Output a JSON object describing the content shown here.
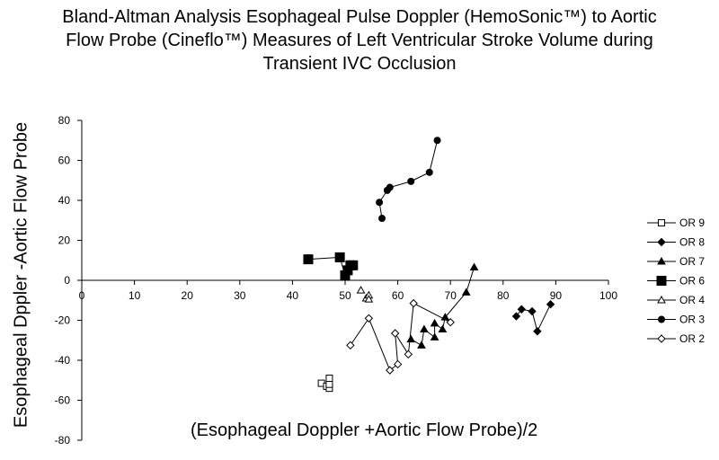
{
  "chart_data": {
    "type": "scatter",
    "title_lines": [
      "Bland-Altman Analysis Esophageal Pulse Doppler (HemoSonic™) to Aortic",
      "Flow Probe (Cineflo™) Measures of Left Ventricular Stroke Volume during",
      "Transient IVC Occlusion"
    ],
    "xlabel": "(Esophageal Doppler +Aortic Flow Probe)/2",
    "ylabel": "Esophageal Dppler -Aortic Flow Probe",
    "xlim": [
      0,
      100
    ],
    "ylim": [
      -80,
      80
    ],
    "x_ticks": [
      0,
      10,
      20,
      30,
      40,
      50,
      60,
      70,
      80,
      90,
      100
    ],
    "y_ticks": [
      80,
      60,
      40,
      20,
      0,
      -20,
      -40,
      -60,
      -80
    ],
    "grid": false,
    "legend_position": "right",
    "series": [
      {
        "name": "OR 9",
        "marker": "square-open",
        "lines": false,
        "points": [
          [
            45.5,
            -51.5
          ],
          [
            46.5,
            -53
          ],
          [
            47,
            -54
          ],
          [
            47,
            -52
          ],
          [
            47,
            -49
          ]
        ]
      },
      {
        "name": "OR 8",
        "marker": "diamond-filled",
        "lines": true,
        "points": [
          [
            82.5,
            -18
          ],
          [
            83.5,
            -14.5
          ],
          [
            85.5,
            -15.5
          ],
          [
            86.5,
            -25.5
          ],
          [
            89,
            -12
          ]
        ]
      },
      {
        "name": "OR 7",
        "marker": "triangle-filled",
        "lines": true,
        "points": [
          [
            62.5,
            -29.5
          ],
          [
            64.5,
            -32.5
          ],
          [
            65,
            -24.5
          ],
          [
            67,
            -28.5
          ],
          [
            67,
            -21.5
          ],
          [
            68.5,
            -24.5
          ],
          [
            69,
            -18.5
          ],
          [
            73,
            -6
          ],
          [
            74.5,
            6.5
          ]
        ]
      },
      {
        "name": "OR 6",
        "marker": "square-filled",
        "lines": true,
        "points": [
          [
            43,
            10.5
          ],
          [
            49,
            11.5
          ],
          [
            50,
            2.5
          ],
          [
            50.5,
            5
          ],
          [
            51,
            7.5
          ],
          [
            51.5,
            7.5
          ]
        ]
      },
      {
        "name": "OR 4",
        "marker": "triangle-open",
        "lines": false,
        "points": [
          [
            53,
            -5
          ],
          [
            54,
            -9
          ],
          [
            54.5,
            -7.5
          ],
          [
            54.5,
            -9.5
          ]
        ]
      },
      {
        "name": "OR 3",
        "marker": "circle-filled",
        "lines": true,
        "points": [
          [
            57,
            31
          ],
          [
            56.5,
            39
          ],
          [
            58,
            45
          ],
          [
            58.5,
            46.5
          ],
          [
            62.5,
            49.5
          ],
          [
            66,
            54
          ],
          [
            67.5,
            70
          ]
        ]
      },
      {
        "name": "OR 2",
        "marker": "diamond-open",
        "lines": true,
        "points": [
          [
            51,
            -32.5
          ],
          [
            54.5,
            -19
          ],
          [
            58.5,
            -45
          ],
          [
            60,
            -42
          ],
          [
            59.5,
            -26.5
          ],
          [
            62,
            -37
          ],
          [
            63,
            -11.5
          ],
          [
            70,
            -21
          ]
        ]
      }
    ]
  }
}
